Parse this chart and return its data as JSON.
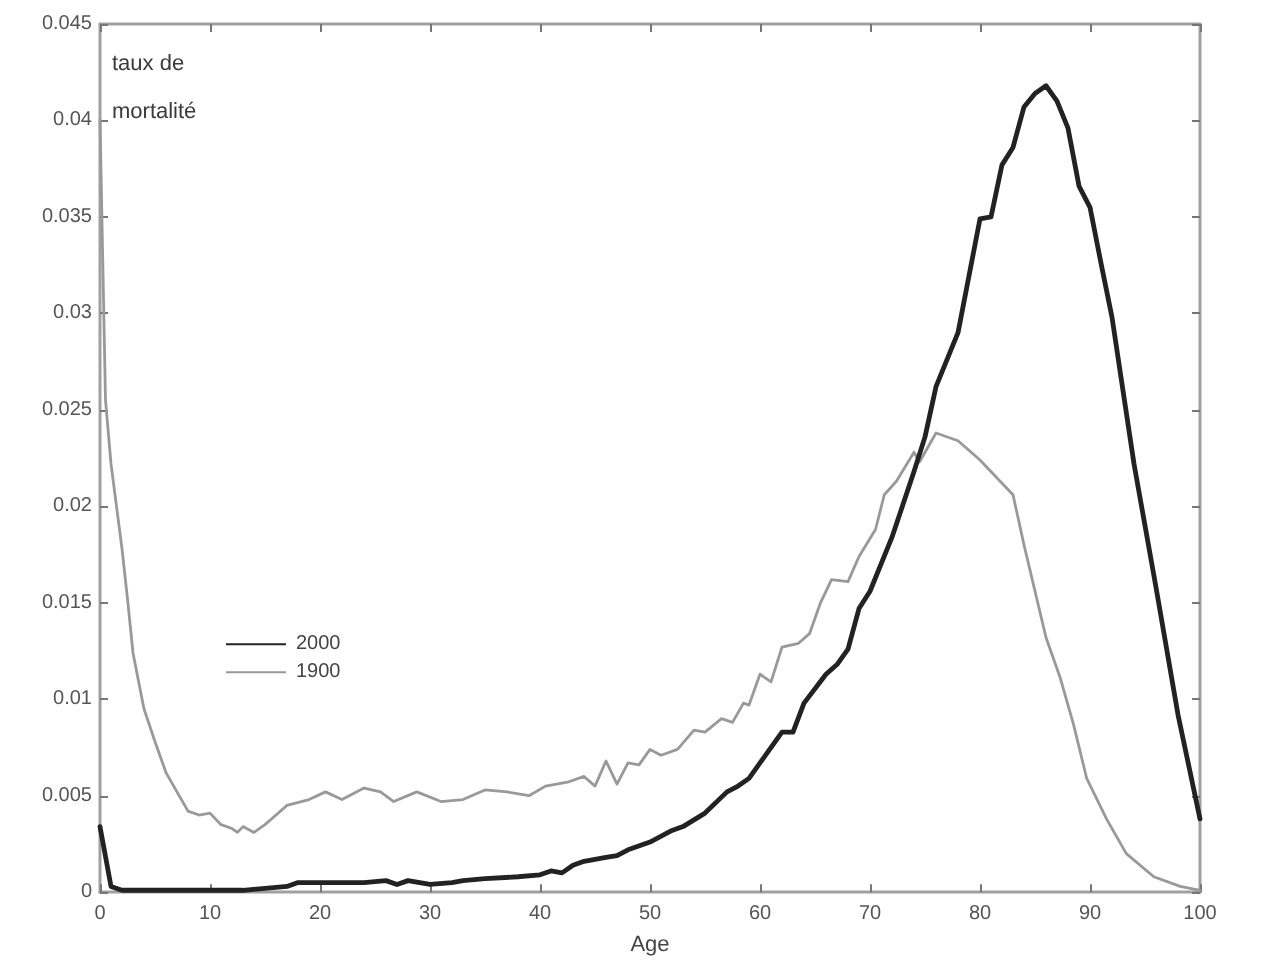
{
  "chart_data": {
    "type": "line",
    "ylabel": "taux de mortalité",
    "xlabel": "Age",
    "xlim": [
      0,
      100
    ],
    "xticks": [
      0,
      10,
      20,
      30,
      40,
      50,
      60,
      70,
      80,
      90,
      100
    ],
    "ylim": [
      0,
      0.045
    ],
    "yticks": [
      0,
      0.005,
      0.01,
      0.015,
      0.02,
      0.025,
      0.03,
      0.035,
      0.04,
      0.045
    ],
    "grid": false,
    "legend": "left",
    "marker": "none",
    "line_style": "solid",
    "series": [
      {
        "name": "2000",
        "color": "#222222",
        "x": [
          0,
          1,
          2,
          5,
          8,
          10,
          13,
          15,
          17,
          18,
          20,
          22,
          24,
          26,
          27,
          28,
          30,
          32,
          33,
          35,
          38,
          40,
          41,
          42,
          43,
          44,
          46,
          47,
          48,
          50,
          52,
          53,
          55,
          57,
          58,
          59,
          60,
          62,
          63,
          64,
          66,
          67,
          68,
          69,
          70,
          72,
          74,
          75,
          76,
          78,
          80,
          81,
          82,
          83,
          84,
          85,
          86,
          87,
          88,
          89,
          90,
          91,
          92,
          93,
          94,
          96,
          98,
          100
        ],
        "values": [
          0.0034,
          0.0003,
          0.0001,
          0.0001,
          0.0001,
          0.0001,
          0.0001,
          0.0002,
          0.0003,
          0.0005,
          0.0005,
          0.0005,
          0.0005,
          0.0006,
          0.0004,
          0.0006,
          0.0004,
          0.0005,
          0.0006,
          0.0007,
          0.0008,
          0.0009,
          0.0011,
          0.001,
          0.0014,
          0.0016,
          0.0018,
          0.0019,
          0.0022,
          0.0026,
          0.0032,
          0.0034,
          0.0041,
          0.0052,
          0.0055,
          0.0059,
          0.0067,
          0.0083,
          0.0083,
          0.0098,
          0.0113,
          0.0118,
          0.0126,
          0.0147,
          0.0156,
          0.0184,
          0.0218,
          0.0236,
          0.0262,
          0.029,
          0.0349,
          0.035,
          0.0377,
          0.0386,
          0.0407,
          0.0414,
          0.0418,
          0.041,
          0.0396,
          0.0366,
          0.0355,
          0.0326,
          0.0298,
          0.026,
          0.0222,
          0.0158,
          0.0092,
          0.0038
        ]
      },
      {
        "name": "1900",
        "color": "#999999",
        "x": [
          0,
          0.5,
          1,
          2,
          2.5,
          3,
          4,
          5,
          6,
          7,
          8,
          9,
          10,
          11,
          12,
          12.5,
          13,
          14,
          15,
          16,
          17,
          19,
          20.5,
          22,
          24,
          25.5,
          26.7,
          28.8,
          31,
          33,
          35,
          37,
          39,
          40.5,
          42.5,
          44,
          45,
          46,
          47,
          48,
          49,
          50,
          51,
          52.5,
          54,
          55,
          56.5,
          57.5,
          58.5,
          59,
          60,
          61,
          62,
          63.5,
          64.5,
          65.5,
          66.5,
          68,
          69,
          70.5,
          71.3,
          72.4,
          74,
          74.5,
          76,
          78,
          80,
          82,
          83,
          84,
          86,
          87.3,
          88.5,
          89.7,
          91.5,
          93.3,
          95.8,
          98.2,
          100
        ],
        "values": [
          0.04,
          0.0255,
          0.0222,
          0.0178,
          0.0152,
          0.0124,
          0.0095,
          0.0078,
          0.0062,
          0.0052,
          0.0042,
          0.004,
          0.0041,
          0.0035,
          0.0033,
          0.0031,
          0.0034,
          0.0031,
          0.0035,
          0.004,
          0.0045,
          0.0048,
          0.0052,
          0.0048,
          0.0054,
          0.0052,
          0.0047,
          0.0052,
          0.0047,
          0.0048,
          0.0053,
          0.0052,
          0.005,
          0.0055,
          0.0057,
          0.006,
          0.0055,
          0.0068,
          0.0056,
          0.0067,
          0.0066,
          0.0074,
          0.0071,
          0.0074,
          0.0084,
          0.0083,
          0.009,
          0.0088,
          0.0098,
          0.0097,
          0.0113,
          0.0109,
          0.0127,
          0.0129,
          0.0134,
          0.015,
          0.0162,
          0.0161,
          0.0174,
          0.0188,
          0.0206,
          0.0213,
          0.0228,
          0.0223,
          0.0238,
          0.0234,
          0.0224,
          0.0212,
          0.0206,
          0.018,
          0.0132,
          0.0111,
          0.0087,
          0.0059,
          0.0038,
          0.002,
          0.0008,
          0.0003,
          0.0001
        ]
      }
    ]
  }
}
